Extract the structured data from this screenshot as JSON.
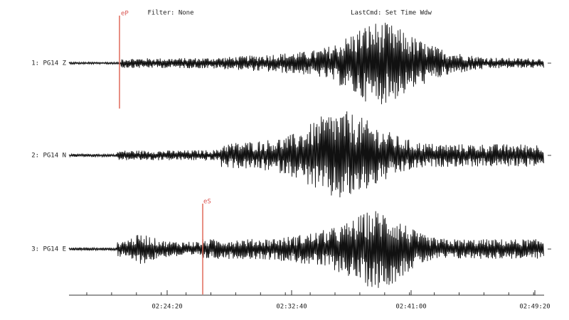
{
  "header": {
    "filter": "Filter: None",
    "last_cmd": "LastCmd: Set Time Wdw"
  },
  "traces": [
    {
      "label": "1: PG14 Z"
    },
    {
      "label": "2: PG14 N"
    },
    {
      "label": "3: PG14 E"
    }
  ],
  "picks": [
    {
      "label": "eP"
    },
    {
      "label": "eS"
    }
  ],
  "time_axis": {
    "labels": [
      "02:24:20",
      "02:32:40",
      "02:41:00",
      "02:49:20"
    ]
  }
}
